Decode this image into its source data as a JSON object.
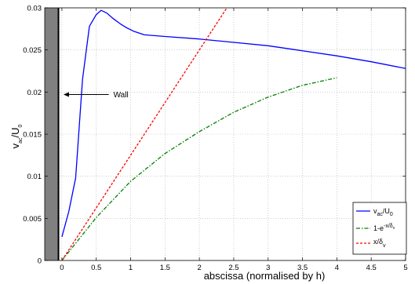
{
  "chart_data": {
    "type": "line",
    "xlabel": "abscissa (normalised by h)",
    "ylabel": {
      "base": "v",
      "sub1": "ac",
      "mid": "/U",
      "sub2": "0"
    },
    "xlim": [
      -0.25,
      5
    ],
    "ylim": [
      0,
      0.03
    ],
    "xticks": [
      "0",
      "0.5",
      "1",
      "1.5",
      "2",
      "2.5",
      "3",
      "3.5",
      "4",
      "4.5",
      "5"
    ],
    "xtick_values": [
      0,
      0.5,
      1,
      1.5,
      2,
      2.5,
      3,
      3.5,
      4,
      4.5,
      5
    ],
    "yticks": [
      "0",
      "0.005",
      "0.01",
      "0.015",
      "0.02",
      "0.025",
      "0.03"
    ],
    "ytick_values": [
      0,
      0.005,
      0.01,
      0.015,
      0.02,
      0.025,
      0.03
    ],
    "grid": true,
    "legend_position": "bottom-right",
    "wall_region": {
      "x_from": -0.25,
      "x_to": -0.05
    },
    "annotation": {
      "text": "Wall",
      "x": 0,
      "y": 0.0197,
      "text_x": 0.75,
      "text_y": 0.0197
    },
    "series": [
      {
        "name": {
          "base": "v",
          "sub1": "ac",
          "mid": "/U",
          "sub2": "0"
        },
        "color": "#0000ff",
        "dash": "solid",
        "x": [
          0,
          0.1,
          0.2,
          0.3,
          0.4,
          0.5,
          0.57,
          0.65,
          0.75,
          0.85,
          0.95,
          1.05,
          1.2,
          1.5,
          2,
          2.5,
          3,
          3.5,
          4,
          4.5,
          5
        ],
        "y": [
          0.0028,
          0.0058,
          0.0098,
          0.0215,
          0.0278,
          0.0292,
          0.0297,
          0.0294,
          0.0287,
          0.0281,
          0.0276,
          0.0272,
          0.0268,
          0.0266,
          0.0263,
          0.0259,
          0.0255,
          0.0249,
          0.0243,
          0.0236,
          0.0228
        ]
      },
      {
        "name": {
          "base": "1-e",
          "sup": "-x/δ",
          "sup_sub": "v"
        },
        "color": "#008000",
        "dash": "dashdot",
        "x": [
          0,
          0.5,
          1,
          1.5,
          2,
          2.5,
          3,
          3.5,
          4
        ],
        "y": [
          0,
          0.0051,
          0.0094,
          0.0127,
          0.0153,
          0.0176,
          0.0194,
          0.0208,
          0.0217
        ]
      },
      {
        "name": {
          "base": "x/δ",
          "sub": "v"
        },
        "color": "#ff0000",
        "dash": "dashed",
        "x": [
          0,
          2.4
        ],
        "y": [
          0,
          0.03
        ]
      }
    ]
  }
}
